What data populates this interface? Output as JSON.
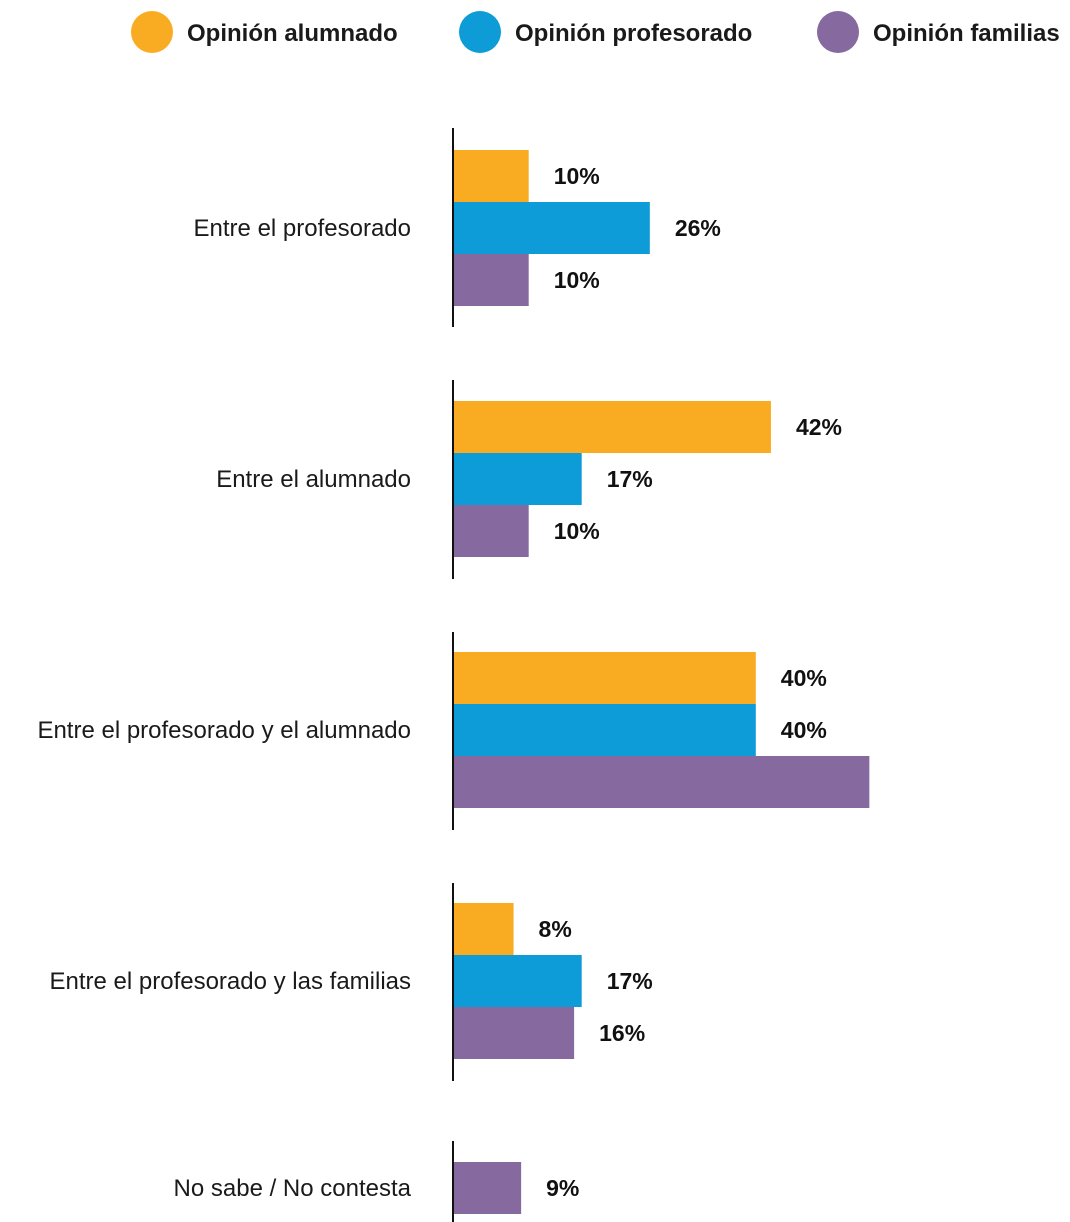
{
  "chart_data": {
    "type": "bar",
    "orientation": "horizontal",
    "categories": [
      "Entre el profesorado",
      "Entre el alumnado",
      "Entre el profesorado y el alumnado",
      "Entre el profesorado y las familias",
      "No sabe / No contesta"
    ],
    "series": [
      {
        "name": "Opinión alumnado",
        "color": "#F9AC22",
        "values": [
          10,
          42,
          40,
          8,
          null
        ],
        "labels": [
          "10%",
          "42%",
          "40%",
          "8%",
          ""
        ]
      },
      {
        "name": "Opinión profesorado",
        "color": "#0E9CD8",
        "values": [
          26,
          17,
          40,
          17,
          null
        ],
        "labels": [
          "26%",
          "17%",
          "40%",
          "17%",
          ""
        ]
      },
      {
        "name": "Opinión familias",
        "color": "#86699F",
        "values": [
          10,
          10,
          55,
          16,
          9
        ],
        "labels": [
          "10%",
          "10%",
          "",
          "16%",
          "9%"
        ]
      }
    ],
    "xlim": [
      0,
      100
    ],
    "legend_position": "top",
    "grid": false
  }
}
